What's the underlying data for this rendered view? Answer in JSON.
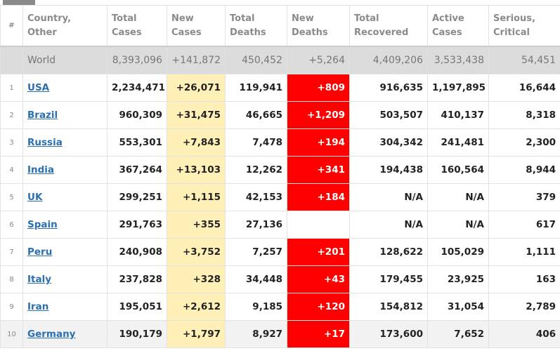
{
  "table": {
    "headers": [
      "#",
      "Country, Other",
      "Total Cases",
      "New Cases",
      "Total Deaths",
      "New Deaths",
      "Total Recovered",
      "Active Cases",
      "Serious, Critical"
    ],
    "world": [
      null,
      "World",
      "8,393,096",
      "+141,872",
      "450,452",
      "+5,264",
      "4,409,206",
      "3,533,438",
      "54,451"
    ],
    "rows": [
      [
        "1",
        "USA",
        "2,234,471",
        "+26,071",
        "119,941",
        "+809",
        "916,635",
        "1,197,895",
        "16,644"
      ],
      [
        "2",
        "Brazil",
        "960,309",
        "+31,475",
        "46,665",
        "+1,209",
        "503,507",
        "410,137",
        "8,318"
      ],
      [
        "3",
        "Russia",
        "553,301",
        "+7,843",
        "7,478",
        "+194",
        "304,342",
        "241,481",
        "2,300"
      ],
      [
        "4",
        "India",
        "367,264",
        "+13,103",
        "12,262",
        "+341",
        "194,438",
        "160,564",
        "8,944"
      ],
      [
        "5",
        "UK",
        "299,251",
        "+1,115",
        "42,153",
        "+184",
        "N/A",
        "N/A",
        "379"
      ],
      [
        "6",
        "Spain",
        "291,763",
        "+355",
        "27,136",
        null,
        "N/A",
        "N/A",
        "617"
      ],
      [
        "7",
        "Peru",
        "240,908",
        "+3,752",
        "7,257",
        "+201",
        "128,622",
        "105,029",
        "1,111"
      ],
      [
        "8",
        "Italy",
        "237,828",
        "+328",
        "34,448",
        "+43",
        "179,455",
        "23,925",
        "163"
      ],
      [
        "9",
        "Iran",
        "195,051",
        "+2,612",
        "9,185",
        "+120",
        "154,812",
        "31,054",
        "2,789"
      ],
      [
        "10",
        "Germany",
        "190,179",
        "+1,797",
        "8,927",
        "+17",
        "173,600",
        "7,652",
        "406"
      ]
    ]
  }
}
